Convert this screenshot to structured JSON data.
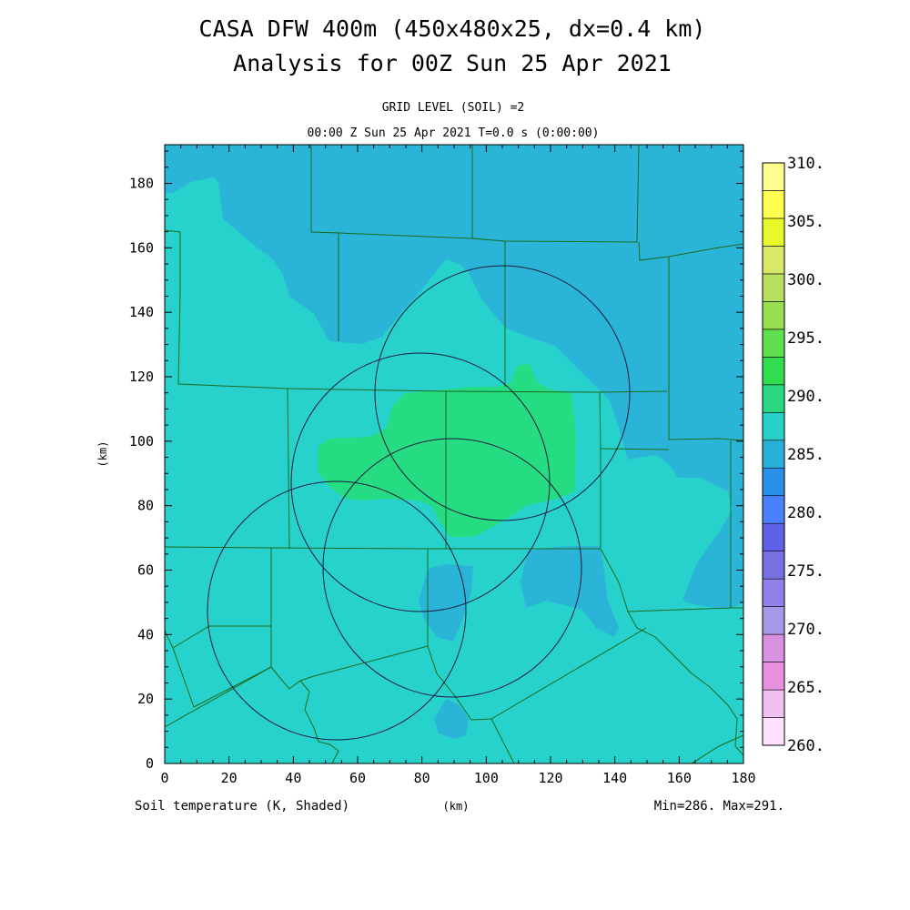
{
  "header": {
    "title_line1": "CASA DFW 400m (450x480x25, dx=0.4 km)",
    "title_line2": "Analysis for 00Z Sun 25 Apr 2021",
    "level_label": "GRID LEVEL (SOIL) =2",
    "time_label": "00:00 Z Sun 25 Apr 2021   T=0.0 s (0:00:00)"
  },
  "footer": {
    "field_label": "Soil temperature (K, Shaded)",
    "x_unit": "(km)",
    "minmax": "Min=286. Max=291."
  },
  "axes": {
    "y_unit": "(km)",
    "x_ticks": [
      "0",
      "20",
      "40",
      "60",
      "80",
      "100",
      "120",
      "140",
      "160",
      "180"
    ],
    "y_ticks": [
      "0",
      "20",
      "40",
      "60",
      "80",
      "100",
      "120",
      "140",
      "160",
      "180"
    ],
    "x_range_km": [
      0,
      180
    ],
    "y_range_km": [
      0,
      192
    ]
  },
  "colorbar": {
    "labels": [
      "260.",
      "265.",
      "270.",
      "275.",
      "280.",
      "285.",
      "290.",
      "295.",
      "300.",
      "305.",
      "310."
    ],
    "colors_low_to_high": [
      "#ffe0ff",
      "#f0c0f0",
      "#e890e0",
      "#d890e0",
      "#a898e8",
      "#9080e8",
      "#7870e0",
      "#6060e8",
      "#4880ff",
      "#2890e8",
      "#28b0d8",
      "#28d0c8",
      "#28d880",
      "#30dc50",
      "#60e050",
      "#98e050",
      "#b8e060",
      "#d8e868",
      "#e8f828",
      "#ffff50",
      "#ffff90"
    ]
  },
  "field_colors": {
    "cyan_286": "#2ab4d8",
    "teal_288": "#28d2cc",
    "green_290": "#26dc82"
  },
  "radars_km": [
    {
      "cx": 105,
      "cy": 116,
      "r": 39
    },
    {
      "cx": 80,
      "cy": 87,
      "r": 40
    },
    {
      "cx": 90,
      "cy": 61,
      "r": 40
    },
    {
      "cx": 50,
      "cy": 47,
      "r": 40
    }
  ]
}
